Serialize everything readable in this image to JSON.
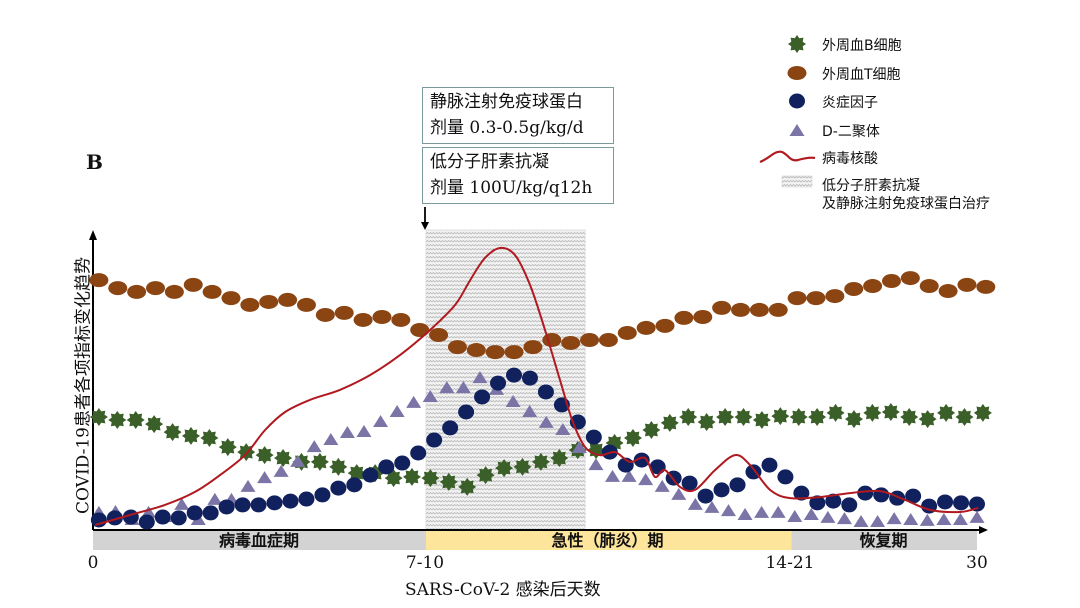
{
  "panel_label": "B",
  "annotations": {
    "ivig_title": "静脉注射免疫球蛋白",
    "ivig_dose": "剂量 0.3-0.5g/kg/d",
    "lmwh_title": "低分子肝素抗凝",
    "lmwh_dose": "剂量 100U/kg/q12h"
  },
  "legend": {
    "b_cells": "外周血B细胞",
    "t_cells": "外周血T细胞",
    "inflammatory": "炎症因子",
    "d_dimer": "D-二聚体",
    "viral_rna": "病毒核酸",
    "treatment_line1": "低分子肝素抗凝",
    "treatment_line2": "及静脉注射免疫球蛋白治疗"
  },
  "colors": {
    "b_cells": "#3b5f28",
    "t_cells": "#8b4513",
    "inflammatory": "#10215e",
    "d_dimer": "#7a75a6",
    "viral_rna": "#b0191f",
    "phase_grey": "#d3d3d3",
    "phase_yellow": "#fde59b"
  },
  "chart_data": {
    "type": "line",
    "title": "",
    "xlabel": "SARS-CoV-2 感染后天数",
    "ylabel": "COVID-19患者各项指标变化趋势",
    "xlim": [
      0,
      30
    ],
    "ylim": [
      0,
      100
    ],
    "x_ticks": [
      {
        "value": 0,
        "label": "0"
      },
      {
        "value": 11.3,
        "label": "7-10"
      },
      {
        "value": 23.7,
        "label": "14-21"
      },
      {
        "value": 30,
        "label": "30"
      }
    ],
    "phases": [
      {
        "label": "病毒血症期",
        "start": 0,
        "end": 11.3,
        "color": "grey"
      },
      {
        "label": "急性（肺炎）期",
        "start": 11.3,
        "end": 23.7,
        "color": "yellow"
      },
      {
        "label": "恢复期",
        "start": 23.7,
        "end": 30,
        "color": "grey"
      }
    ],
    "treatment_window": [
      11.3,
      16.7
    ],
    "treatment_start_arrow": 11.3,
    "series": [
      {
        "key": "t_cells",
        "name": "外周血T细胞",
        "marker": "ellipse",
        "x_range": [
          0.2,
          30.3
        ],
        "values": [
          84.7,
          82.0,
          80.7,
          82.0,
          80.7,
          83.1,
          80.7,
          78.6,
          76.3,
          77.3,
          78.0,
          76.3,
          72.9,
          73.6,
          71.2,
          72.2,
          71.2,
          67.8,
          66.1,
          62.0,
          61.0,
          60.3,
          60.3,
          62.0,
          64.4,
          63.4,
          64.4,
          64.4,
          66.8,
          68.5,
          69.2,
          71.9,
          72.2,
          75.3,
          74.6,
          74.6,
          74.6,
          78.6,
          78.6,
          79.3,
          81.7,
          82.7,
          84.4,
          85.4,
          82.7,
          81.0,
          83.1,
          82.4
        ]
      },
      {
        "key": "b_cells",
        "name": "外周血B细胞",
        "marker": "star",
        "x_range": [
          0.2,
          30.2
        ],
        "values": [
          38.3,
          37.3,
          37.3,
          35.9,
          33.2,
          31.9,
          31.2,
          28.1,
          26.4,
          25.4,
          24.4,
          23.1,
          23.1,
          21.4,
          19.3,
          19.3,
          17.6,
          18.0,
          17.6,
          16.3,
          14.6,
          18.6,
          21.0,
          21.4,
          23.1,
          24.4,
          27.1,
          27.1,
          29.5,
          31.2,
          33.9,
          36.3,
          38.3,
          36.6,
          38.3,
          38.3,
          37.3,
          38.6,
          38.3,
          38.3,
          39.7,
          37.6,
          39.7,
          40.0,
          38.3,
          37.6,
          39.7,
          38.3,
          39.7
        ]
      },
      {
        "key": "inflammatory",
        "name": "炎症因子",
        "marker": "circle",
        "x_range": [
          0.2,
          30.0
        ],
        "values": [
          3.4,
          4.1,
          4.4,
          2.7,
          4.4,
          4.1,
          5.8,
          5.8,
          7.8,
          8.5,
          8.5,
          9.2,
          9.8,
          10.5,
          11.9,
          14.2,
          15.3,
          18.6,
          21.4,
          22.7,
          26.1,
          30.5,
          34.6,
          40.0,
          45.1,
          49.8,
          52.5,
          51.5,
          46.8,
          42.4,
          36.6,
          31.5,
          26.4,
          22.0,
          23.7,
          21.4,
          17.6,
          15.9,
          11.5,
          13.6,
          15.3,
          19.7,
          22.0,
          18.0,
          12.5,
          9.2,
          9.8,
          8.5,
          12.5,
          11.9,
          10.8,
          11.5,
          8.1,
          9.5,
          9.2,
          8.8
        ]
      },
      {
        "key": "d_dimer",
        "name": "D-二聚体",
        "marker": "triangle",
        "x_range": [
          0.2,
          30.0
        ],
        "values": [
          5.8,
          6.1,
          3.4,
          5.8,
          4.4,
          8.5,
          3.4,
          10.2,
          10.2,
          14.6,
          17.6,
          19.7,
          23.1,
          28.1,
          30.5,
          32.9,
          33.2,
          36.6,
          40.0,
          43.1,
          45.1,
          48.1,
          48.1,
          51.5,
          47.5,
          43.4,
          40.0,
          36.3,
          33.9,
          27.8,
          22.0,
          18.0,
          18.0,
          16.9,
          14.6,
          11.9,
          8.5,
          7.5,
          6.4,
          5.1,
          5.8,
          5.8,
          4.4,
          5.1,
          4.1,
          3.7,
          2.7,
          2.7,
          3.7,
          3.4,
          3.1,
          3.4,
          3.4,
          4.1
        ]
      },
      {
        "key": "viral_rna",
        "name": "病毒核酸",
        "marker": "line",
        "points": [
          [
            0.07,
            1.7
          ],
          [
            1.26,
            5.1
          ],
          [
            2.44,
            8.5
          ],
          [
            3.46,
            12.9
          ],
          [
            4.31,
            18.6
          ],
          [
            5.16,
            25.4
          ],
          [
            5.84,
            33.9
          ],
          [
            6.52,
            40.0
          ],
          [
            7.36,
            44.1
          ],
          [
            8.38,
            47.5
          ],
          [
            9.4,
            52.5
          ],
          [
            10.42,
            59.3
          ],
          [
            11.44,
            67.8
          ],
          [
            12.29,
            76.3
          ],
          [
            12.8,
            84.7
          ],
          [
            13.3,
            92.2
          ],
          [
            13.81,
            95.6
          ],
          [
            14.32,
            93.2
          ],
          [
            14.83,
            83.1
          ],
          [
            15.34,
            67.8
          ],
          [
            15.85,
            50.8
          ],
          [
            16.26,
            37.3
          ],
          [
            16.7,
            28.1
          ],
          [
            17.21,
            25.4
          ],
          [
            17.72,
            26.4
          ],
          [
            18.22,
            23.1
          ],
          [
            18.73,
            24.4
          ],
          [
            19.07,
            18.0
          ],
          [
            19.41,
            20.3
          ],
          [
            19.92,
            14.6
          ],
          [
            20.43,
            13.6
          ],
          [
            21.11,
            20.3
          ],
          [
            21.79,
            25.4
          ],
          [
            22.3,
            22.0
          ],
          [
            22.98,
            13.6
          ],
          [
            23.66,
            10.8
          ],
          [
            24.68,
            11.2
          ],
          [
            25.69,
            12.5
          ],
          [
            26.71,
            13.2
          ],
          [
            27.56,
            10.2
          ],
          [
            28.41,
            6.8
          ],
          [
            29.43,
            6.1
          ],
          [
            30.04,
            7.5
          ]
        ]
      }
    ]
  }
}
